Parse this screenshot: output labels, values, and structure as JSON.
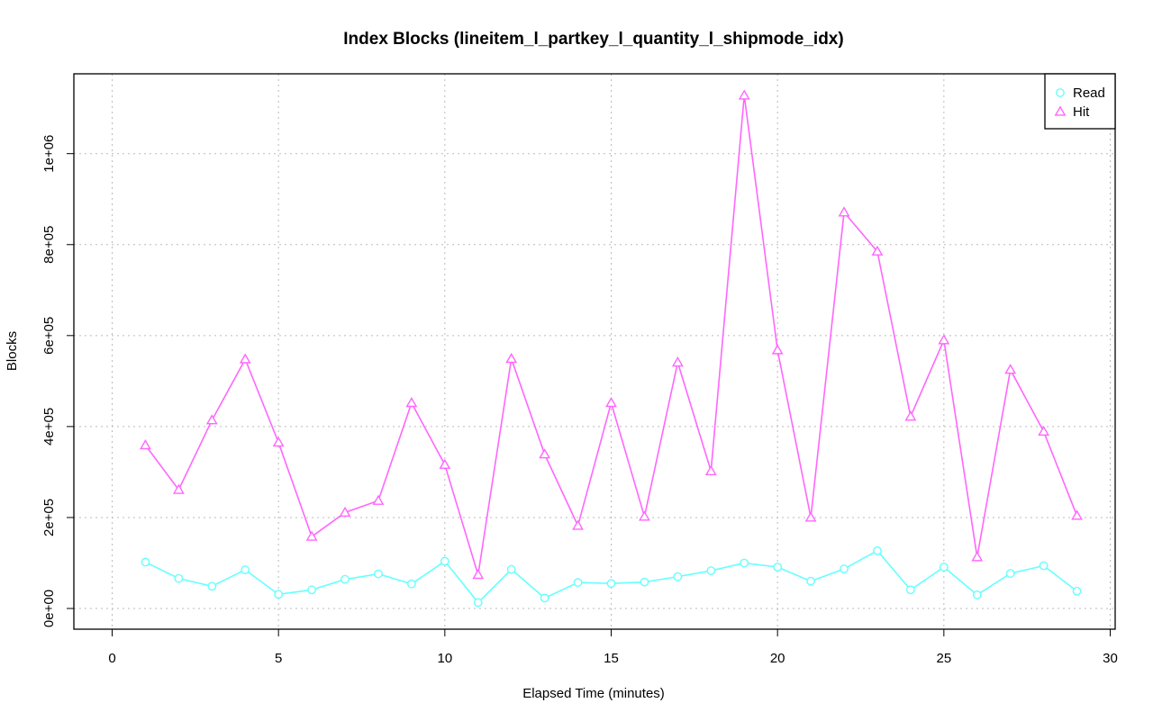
{
  "chart_data": {
    "type": "line",
    "title": "Index Blocks (lineitem_l_partkey_l_quantity_l_shipmode_idx)",
    "xlabel": "Elapsed Time (minutes)",
    "ylabel": "Blocks",
    "xlim": [
      0,
      30
    ],
    "ylim": [
      0,
      1130000
    ],
    "x_ticks": [
      0,
      5,
      10,
      15,
      20,
      25,
      30
    ],
    "x_tick_labels": [
      "0",
      "5",
      "10",
      "15",
      "20",
      "25",
      "30"
    ],
    "y_ticks": [
      0,
      200000,
      400000,
      600000,
      800000,
      1000000
    ],
    "y_tick_labels": [
      "0e+00",
      "2e+05",
      "4e+05",
      "6e+05",
      "8e+05",
      "1e+06"
    ],
    "grid": true,
    "legend_position": "top-right",
    "x": [
      1,
      2,
      3,
      4,
      5,
      6,
      7,
      8,
      9,
      10,
      11,
      12,
      13,
      14,
      15,
      16,
      17,
      18,
      19,
      20,
      21,
      22,
      23,
      24,
      25,
      26,
      27,
      28,
      29
    ],
    "series": [
      {
        "name": "Read",
        "color": "#66ffff",
        "marker": "circle",
        "values": [
          102000,
          66000,
          49000,
          85000,
          31000,
          41000,
          64000,
          76000,
          54000,
          104000,
          13000,
          86000,
          23000,
          57000,
          55000,
          58000,
          70000,
          83000,
          100000,
          91000,
          60000,
          87000,
          127000,
          41000,
          91000,
          30000,
          77000,
          94000,
          38000
        ]
      },
      {
        "name": "Hit",
        "color": "#ff66ff",
        "marker": "triangle",
        "values": [
          359000,
          261000,
          414000,
          548000,
          365000,
          158000,
          211000,
          237000,
          452000,
          316000,
          74000,
          549000,
          339000,
          182000,
          452000,
          202000,
          541000,
          302000,
          1128000,
          568000,
          200000,
          871000,
          785000,
          422000,
          590000,
          113000,
          525000,
          389000,
          204000
        ]
      }
    ]
  }
}
